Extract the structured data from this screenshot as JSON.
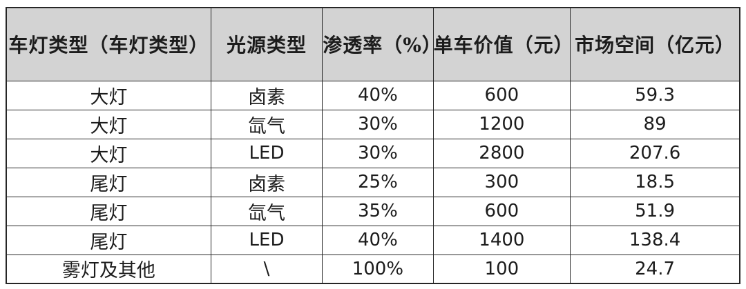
{
  "colors": {
    "page_bg": "#ffffff",
    "header_bg": "#d3d3d3",
    "border": "#262626",
    "text": "#1c1c1c"
  },
  "table": {
    "headers": [
      "车灯类型（车灯类型）",
      "光源类型",
      "渗透率（%）",
      "单车价值（元）",
      "市场空间（亿元）"
    ],
    "rows": [
      {
        "cells": [
          "大灯",
          "卤素",
          "40%",
          "600",
          "59.3"
        ]
      },
      {
        "cells": [
          "大灯",
          "氙气",
          "30%",
          "1200",
          "89"
        ]
      },
      {
        "cells": [
          "大灯",
          "LED",
          "30%",
          "2800",
          "207.6"
        ]
      },
      {
        "cells": [
          "尾灯",
          "卤素",
          "25%",
          "300",
          "18.5"
        ]
      },
      {
        "cells": [
          "尾灯",
          "氙气",
          "35%",
          "600",
          "51.9"
        ]
      },
      {
        "cells": [
          "尾灯",
          "LED",
          "40%",
          "1400",
          "138.4"
        ]
      },
      {
        "cells": [
          "雾灯及其他",
          "\\",
          "100%",
          "100",
          "24.7"
        ]
      }
    ]
  },
  "chart_data": {
    "type": "table",
    "title": "",
    "columns": [
      "车灯类型（车灯类型）",
      "光源类型",
      "渗透率（%）",
      "单车价值（元）",
      "市场空间（亿元）"
    ],
    "rows": [
      [
        "大灯",
        "卤素",
        "40%",
        600,
        59.3
      ],
      [
        "大灯",
        "氙气",
        "30%",
        1200,
        89
      ],
      [
        "大灯",
        "LED",
        "30%",
        2800,
        207.6
      ],
      [
        "尾灯",
        "卤素",
        "25%",
        300,
        18.5
      ],
      [
        "尾灯",
        "氙气",
        "35%",
        600,
        51.9
      ],
      [
        "尾灯",
        "LED",
        "40%",
        1400,
        138.4
      ],
      [
        "雾灯及其他",
        "\\",
        "100%",
        100,
        24.7
      ]
    ]
  }
}
